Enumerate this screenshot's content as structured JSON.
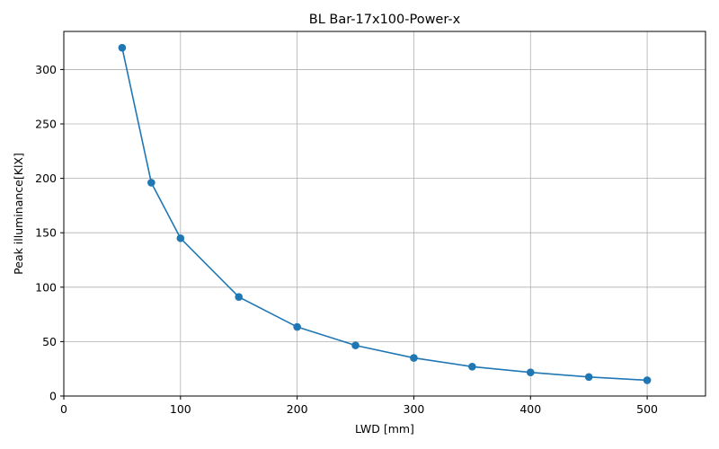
{
  "chart_data": {
    "type": "line",
    "title": "BL Bar-17x100-Power-x",
    "xlabel": "LWD [mm]",
    "ylabel": "Peak illuminance[KlX]",
    "xlim": [
      0,
      550
    ],
    "ylim": [
      0,
      335
    ],
    "x_ticks": [
      0,
      100,
      200,
      300,
      400,
      500
    ],
    "y_ticks": [
      0,
      50,
      100,
      150,
      200,
      250,
      300
    ],
    "grid": true,
    "series": [
      {
        "color": "#1f77b4",
        "marker": "circle",
        "x": [
          50,
          75,
          100,
          150,
          200,
          250,
          300,
          350,
          400,
          450,
          500
        ],
        "y": [
          320,
          196,
          145,
          91,
          63.5,
          46.5,
          35,
          27,
          21.7,
          17.5,
          14.5
        ]
      }
    ]
  }
}
